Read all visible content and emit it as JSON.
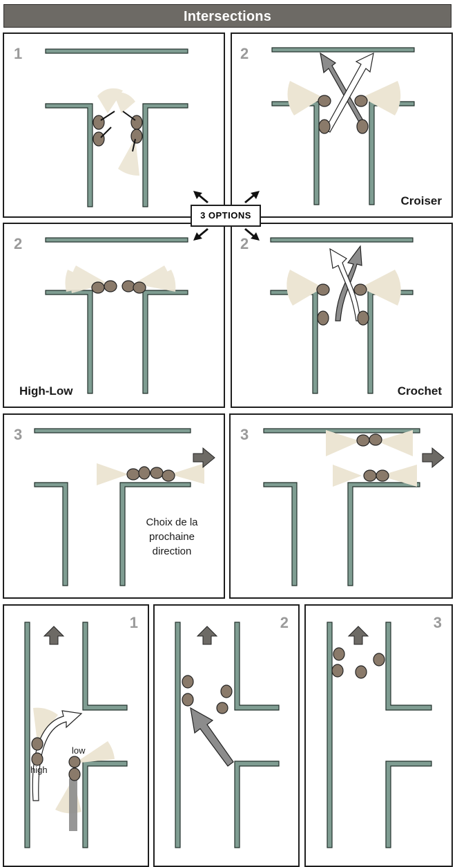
{
  "title": "Intersections",
  "options_label": "3 OPTIONS",
  "panels": {
    "p1": {
      "step": "1"
    },
    "p2": {
      "step": "2",
      "caption": "Croiser"
    },
    "p3": {
      "step": "2",
      "caption": "High-Low"
    },
    "p4": {
      "step": "2",
      "caption": "Crochet"
    },
    "p5": {
      "step": "3",
      "note": [
        "Choix de la",
        "prochaine",
        "direction"
      ]
    },
    "p6": {
      "step": "3"
    },
    "p7": {
      "step": "1",
      "low_label": "low",
      "high_label": "high"
    },
    "p8": {
      "step": "2"
    },
    "p9": {
      "step": "3"
    }
  },
  "colors": {
    "wall": "#7f9d92",
    "wall_outline": "#22302b",
    "title_bar": "#6d6a65",
    "step_number": "#9a9a9a",
    "sector": "#ece5d3",
    "operator_body": "#8a7a6a",
    "arrow_gray": "#8c8c8c"
  }
}
